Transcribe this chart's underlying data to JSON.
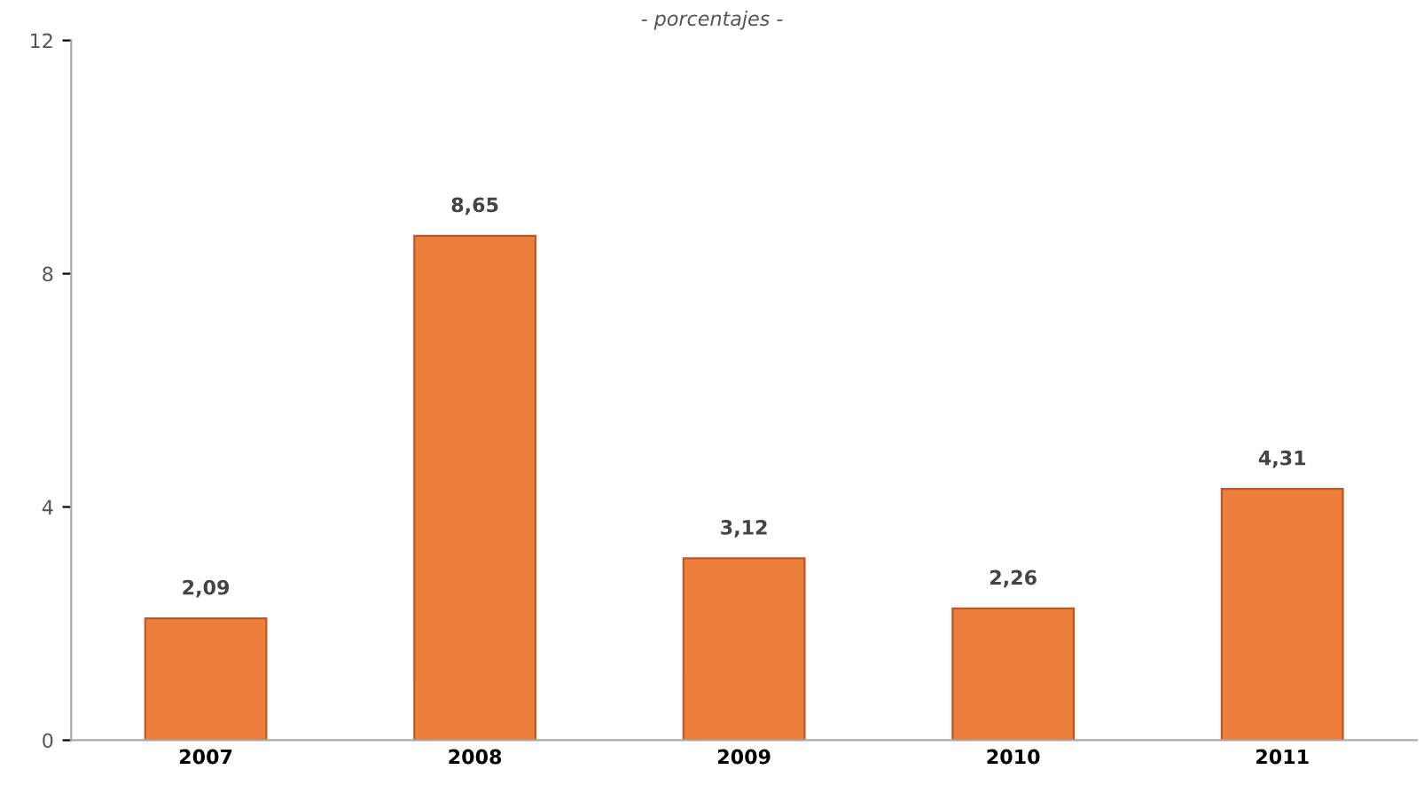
{
  "chart_data": {
    "type": "bar",
    "subtitle": "- porcentajes -",
    "categories": [
      "2007",
      "2008",
      "2009",
      "2010",
      "2011"
    ],
    "values": [
      2.09,
      8.65,
      3.12,
      2.26,
      4.31
    ],
    "value_labels": [
      "2,09",
      "8,65",
      "3,12",
      "2,26",
      "4,31"
    ],
    "color": "#ec7f3c",
    "ylim": [
      0,
      12
    ],
    "yticks": [
      0,
      4,
      8,
      12
    ],
    "grid": false
  }
}
